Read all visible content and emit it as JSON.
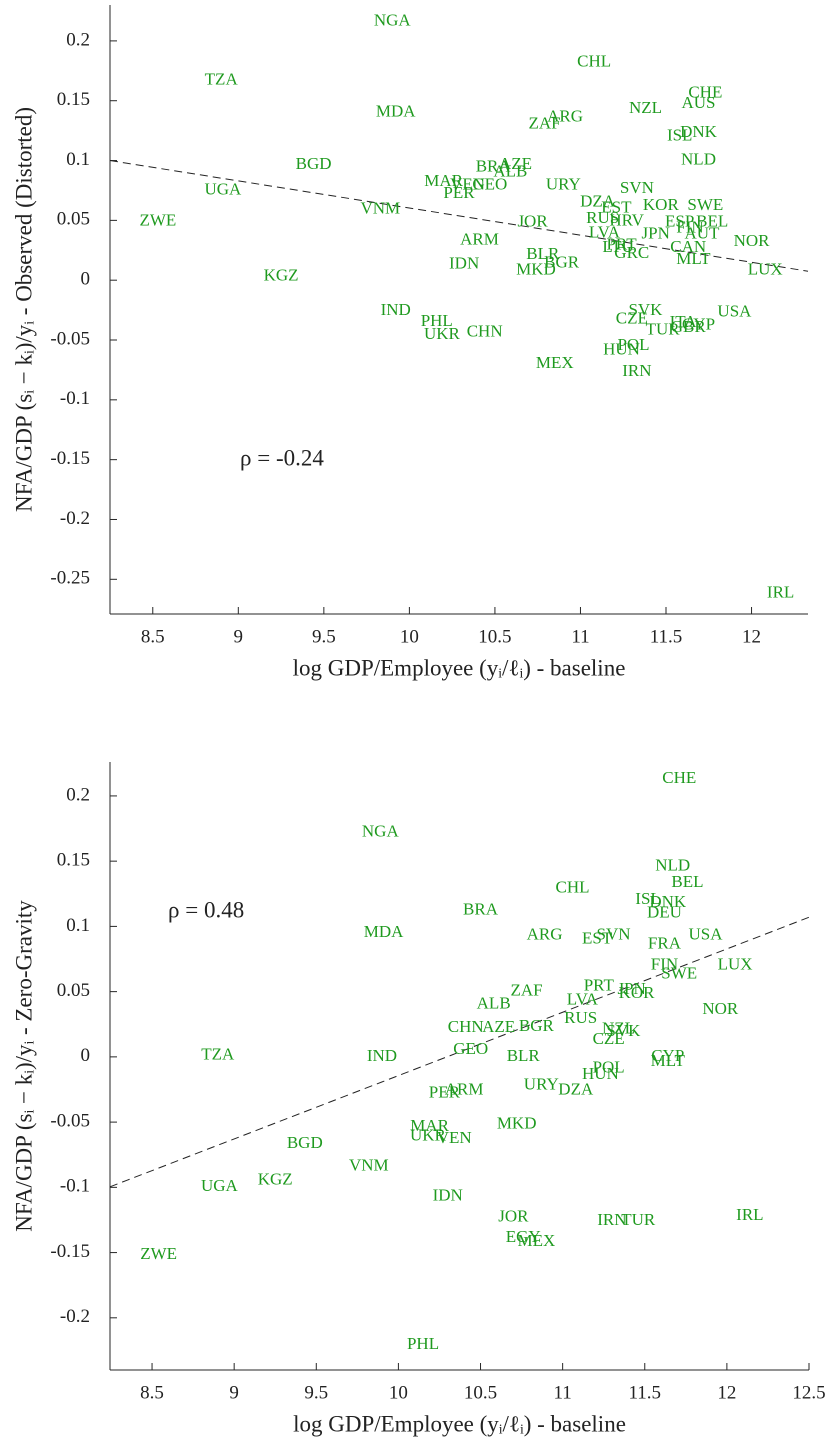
{
  "chart_data": [
    {
      "type": "scatter",
      "color": "#1f9a1f",
      "xlabel": "log GDP/Employee (yᵢ/ℓᵢ) - baseline",
      "ylabel": "NFA/GDP (sᵢ − kᵢ)/yᵢ - Observed (Distorted)",
      "annotation": "ρ = -0.24",
      "xlim": [
        8.25,
        12.33
      ],
      "ylim": [
        -0.279,
        0.23
      ],
      "xticks": [
        8.5,
        9,
        9.5,
        10,
        10.5,
        11,
        11.5,
        12
      ],
      "yticks": [
        -0.25,
        -0.2,
        -0.15,
        -0.1,
        -0.05,
        0,
        0.05,
        0.1,
        0.15,
        0.2
      ],
      "trend_x": [
        8.25,
        12.33
      ],
      "trend_y": [
        0.1,
        0.0075
      ],
      "labels": [
        "NGA",
        "TZA",
        "CHL",
        "MDA",
        "ARG",
        "ZAF",
        "NZL",
        "CHE",
        "AUS",
        "ISL",
        "DNK",
        "NLD",
        "BGD",
        "UGA",
        "ZWE",
        "BRA",
        "AZE",
        "ALB",
        "MAR",
        "VEN",
        "GEO",
        "PER",
        "URY",
        "VNM",
        "DZA",
        "SVN",
        "EST",
        "KOR",
        "SWE",
        "JOR",
        "RUS",
        "HRV",
        "BEL",
        "ESP",
        "FIN",
        "LVA",
        "JPN",
        "AUT",
        "ARM",
        "NOR",
        "PRT",
        "LTU",
        "CAN",
        "GRC",
        "BLR",
        "BGR",
        "MKD",
        "IDN",
        "MLT",
        "LUX",
        "KGZ",
        "ITA",
        "CYP",
        "USA",
        "SVK",
        "CZE",
        "TUR",
        "GBR",
        "POL",
        "HUN",
        "IRN",
        "MEX",
        "IND",
        "PHL",
        "UKR",
        "CHN",
        "IRL"
      ],
      "x": [
        9.9,
        8.9,
        11.08,
        9.92,
        10.91,
        10.79,
        11.38,
        11.73,
        11.69,
        11.58,
        11.69,
        11.69,
        9.44,
        8.91,
        8.53,
        10.49,
        10.62,
        10.59,
        10.2,
        10.34,
        10.47,
        10.29,
        10.9,
        9.83,
        11.1,
        11.33,
        11.21,
        11.47,
        11.73,
        10.72,
        11.13,
        11.27,
        11.77,
        11.58,
        11.64,
        11.14,
        11.44,
        11.71,
        10.41,
        12.0,
        11.24,
        11.22,
        11.63,
        11.3,
        10.78,
        10.89,
        10.74,
        10.32,
        11.66,
        12.08,
        9.25,
        11.6,
        11.69,
        11.9,
        11.38,
        11.3,
        11.48,
        11.63,
        11.31,
        11.24,
        11.33,
        10.85,
        9.92,
        10.16,
        10.19,
        10.44,
        12.17
      ],
      "y": [
        0.216,
        0.167,
        0.182,
        0.14,
        0.136,
        0.13,
        0.143,
        0.156,
        0.147,
        0.12,
        0.123,
        0.1,
        0.096,
        0.075,
        0.049,
        0.094,
        0.096,
        0.09,
        0.082,
        0.079,
        0.079,
        0.072,
        0.079,
        0.059,
        0.065,
        0.076,
        0.06,
        0.062,
        0.062,
        0.048,
        0.051,
        0.049,
        0.048,
        0.048,
        0.043,
        0.039,
        0.038,
        0.038,
        0.033,
        0.032,
        0.029,
        0.027,
        0.027,
        0.022,
        0.021,
        0.014,
        0.008,
        0.013,
        0.017,
        0.008,
        0.003,
        -0.036,
        -0.038,
        -0.027,
        -0.026,
        -0.033,
        -0.042,
        -0.04,
        -0.055,
        -0.059,
        -0.077,
        -0.07,
        -0.026,
        -0.035,
        -0.046,
        -0.044,
        -0.262
      ]
    },
    {
      "type": "scatter",
      "color": "#1f9a1f",
      "xlabel": "log GDP/Employee (yᵢ/ℓᵢ) - baseline",
      "ylabel": "NFA/GDP (sᵢ − kᵢ)/yᵢ - Zero-Gravity",
      "annotation": "ρ = 0.48",
      "xlim": [
        8.244,
        12.5
      ],
      "ylim": [
        -0.24,
        0.226
      ],
      "xticks": [
        8.5,
        9,
        9.5,
        10,
        10.5,
        11,
        11.5,
        12,
        12.5
      ],
      "yticks": [
        -0.2,
        -0.15,
        -0.1,
        -0.05,
        0,
        0.05,
        0.1,
        0.15,
        0.2
      ],
      "trend_x": [
        8.244,
        12.5
      ],
      "trend_y": [
        -0.0996,
        0.107
      ],
      "labels": [
        "CHE",
        "NGA",
        "NLD",
        "BEL",
        "CHL",
        "ISL",
        "DNK",
        "DEU",
        "BRA",
        "MDA",
        "ARG",
        "EST",
        "SVN",
        "USA",
        "FRA",
        "FIN",
        "SWE",
        "LUX",
        "NOR",
        "PRT",
        "JPN",
        "KOR",
        "ZAF",
        "LVA",
        "ALB",
        "RUS",
        "NZL",
        "SVK",
        "CZE",
        "CHN",
        "AZE",
        "BGR",
        "GEO",
        "BLR",
        "TZA",
        "IND",
        "CYP",
        "MLT",
        "POL",
        "HUN",
        "URY",
        "DZA",
        "PER",
        "ARM",
        "MKD",
        "MAR",
        "UKR",
        "VEN",
        "BGD",
        "VNM",
        "KGZ",
        "UGA",
        "IDN",
        "JOR",
        "IRN",
        "TUR",
        "IRL",
        "EGY",
        "MEX",
        "ZWE",
        "PHL"
      ],
      "x": [
        11.71,
        9.89,
        11.67,
        11.76,
        11.06,
        11.52,
        11.64,
        11.62,
        10.5,
        9.91,
        10.89,
        11.21,
        11.31,
        11.87,
        11.62,
        11.62,
        11.71,
        12.05,
        11.96,
        11.22,
        11.42,
        11.45,
        10.78,
        11.12,
        10.58,
        11.11,
        11.34,
        11.37,
        11.28,
        10.41,
        10.61,
        10.84,
        10.44,
        10.76,
        8.9,
        9.9,
        11.64,
        11.64,
        11.28,
        11.23,
        10.87,
        11.08,
        10.28,
        10.4,
        10.72,
        10.19,
        10.18,
        10.34,
        9.43,
        9.82,
        9.25,
        8.91,
        10.3,
        10.7,
        11.3,
        11.46,
        12.14,
        10.76,
        10.84,
        8.54,
        10.15
      ],
      "y": [
        0.213,
        0.172,
        0.146,
        0.133,
        0.129,
        0.12,
        0.118,
        0.11,
        0.112,
        0.095,
        0.093,
        0.09,
        0.093,
        0.093,
        0.086,
        0.07,
        0.063,
        0.07,
        0.036,
        0.054,
        0.051,
        0.048,
        0.05,
        0.043,
        0.04,
        0.029,
        0.021,
        0.019,
        0.013,
        0.022,
        0.022,
        0.023,
        0.005,
        0.0,
        0.001,
        0.0,
        0.0,
        -0.004,
        -0.009,
        -0.014,
        -0.022,
        -0.026,
        -0.028,
        -0.026,
        -0.052,
        -0.054,
        -0.061,
        -0.063,
        -0.067,
        -0.084,
        -0.095,
        -0.1,
        -0.107,
        -0.123,
        -0.126,
        -0.126,
        -0.122,
        -0.139,
        -0.142,
        -0.152,
        -0.221
      ]
    }
  ]
}
